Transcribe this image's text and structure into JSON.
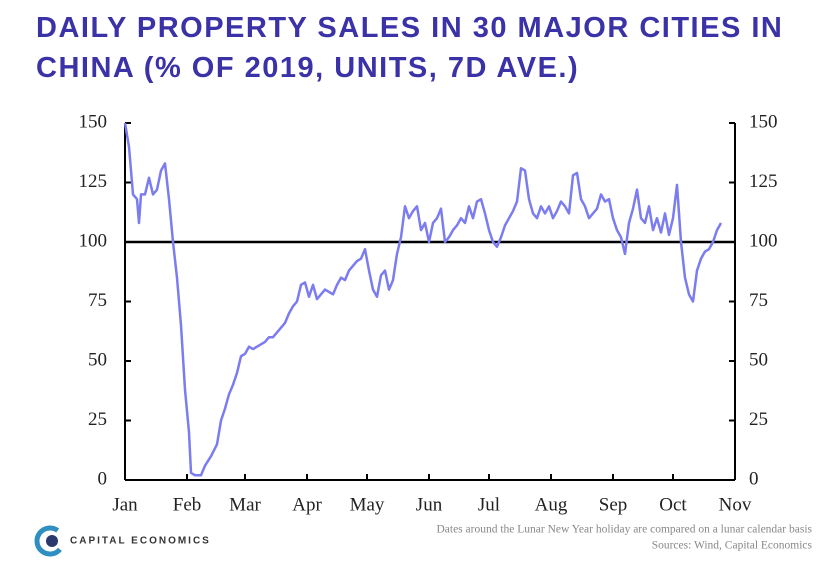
{
  "chart_data": {
    "type": "line",
    "title": "DAILY PROPERTY SALES IN 30 MAJOR CITIES IN CHINA (% OF 2019, UNITS, 7D AVE.)",
    "footnote": "Dates around the Lunar New Year holiday are compared on a lunar calendar basis",
    "source": "Sources: Wind, Capital Economics",
    "brand": "CAPITAL ECONOMICS",
    "x": [
      0,
      2,
      4,
      6,
      7,
      8,
      10,
      12,
      14,
      16,
      18,
      20,
      22,
      24,
      26,
      28,
      30,
      32,
      33,
      35,
      38,
      40,
      43,
      46,
      48,
      50,
      52,
      54,
      56,
      58,
      60,
      62,
      64,
      66,
      68,
      70,
      72,
      74,
      76,
      78,
      80,
      82,
      84,
      86,
      88,
      90,
      92,
      94,
      96,
      98,
      100,
      102,
      104,
      106,
      108,
      110,
      112,
      114,
      116,
      118,
      120,
      122,
      124,
      126,
      128,
      130,
      132,
      134,
      136,
      138,
      140,
      142,
      144,
      146,
      148,
      150,
      152,
      154,
      156,
      158,
      160,
      162,
      164,
      166,
      168,
      170,
      172,
      174,
      176,
      178,
      180,
      182,
      184,
      186,
      188,
      190,
      192,
      194,
      196,
      198,
      200,
      202,
      204,
      206,
      208,
      210,
      212,
      214,
      216,
      218,
      220,
      222,
      224,
      226,
      228,
      230,
      232,
      234,
      236,
      238,
      240,
      242,
      244,
      246,
      248,
      250,
      252,
      254,
      256,
      258,
      260,
      262,
      264,
      266,
      268,
      270,
      272,
      274,
      276,
      278,
      280,
      282,
      284,
      286,
      288,
      290,
      292,
      294,
      296,
      298
    ],
    "series": [
      {
        "name": "Property sales",
        "color": "#7b7cf0",
        "values": [
          150,
          140,
          120,
          118,
          108,
          120,
          120,
          127,
          120,
          122,
          130,
          133,
          118,
          100,
          85,
          65,
          38,
          20,
          3,
          2,
          2,
          6,
          10,
          15,
          25,
          30,
          36,
          40,
          45,
          52,
          53,
          56,
          55,
          56,
          57,
          58,
          60,
          60,
          62,
          64,
          66,
          70,
          73,
          75,
          82,
          83,
          77,
          82,
          76,
          78,
          80,
          79,
          78,
          82,
          85,
          84,
          88,
          90,
          92,
          93,
          97,
          88,
          80,
          77,
          86,
          88,
          80,
          84,
          95,
          102,
          115,
          110,
          113,
          115,
          105,
          108,
          100,
          108,
          110,
          114,
          100,
          102,
          105,
          107,
          110,
          108,
          115,
          110,
          117,
          118,
          112,
          105,
          100,
          98,
          102,
          107,
          110,
          113,
          117,
          131,
          130,
          118,
          112,
          110,
          115,
          112,
          115,
          110,
          113,
          117,
          115,
          112,
          128,
          129,
          118,
          115,
          110,
          112,
          114,
          120,
          117,
          118,
          110,
          105,
          102,
          95,
          108,
          114,
          122,
          110,
          108,
          115,
          105,
          110,
          104,
          112,
          103,
          110,
          124,
          100,
          85,
          78,
          75,
          88,
          93,
          96,
          97,
          100,
          105,
          108
        ]
      }
    ],
    "hline": 100,
    "xlim": [
      0,
      305
    ],
    "xticks": [
      {
        "value": 0,
        "label": "Jan"
      },
      {
        "value": 31,
        "label": "Feb"
      },
      {
        "value": 60,
        "label": "Mar"
      },
      {
        "value": 91,
        "label": "Apr"
      },
      {
        "value": 121,
        "label": "May"
      },
      {
        "value": 152,
        "label": "Jun"
      },
      {
        "value": 182,
        "label": "Jul"
      },
      {
        "value": 213,
        "label": "Aug"
      },
      {
        "value": 244,
        "label": "Sep"
      },
      {
        "value": 274,
        "label": "Oct"
      },
      {
        "value": 305,
        "label": "Nov"
      }
    ],
    "ylim": [
      0,
      150
    ],
    "yticks": [
      0,
      25,
      50,
      75,
      100,
      125,
      150
    ]
  }
}
